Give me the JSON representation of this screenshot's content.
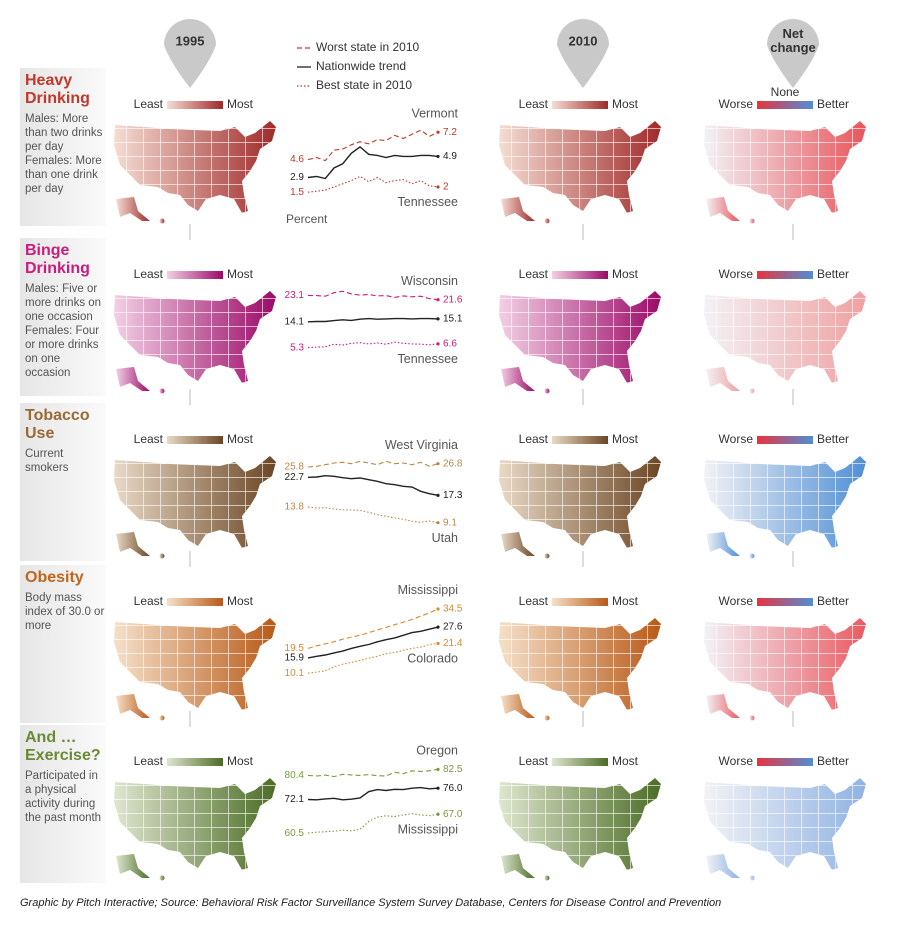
{
  "header": {
    "columns": [
      "1995",
      "2010",
      "Net change"
    ]
  },
  "legend": [
    "Worst state in 2010",
    "Nationwide trend",
    "Best state in 2010"
  ],
  "chart_data": [
    {
      "type": "line",
      "title": "Heavy Drinking",
      "description": "Males: More than two drinks per day Females: More than one drink per day",
      "map_legend": [
        "Least",
        "Most"
      ],
      "net_legend": [
        "Worse",
        "Better"
      ],
      "net_label": "None",
      "unit": "Percent",
      "annotations": [
        "Vermont",
        "Tennessee"
      ],
      "color": "#c0392b",
      "map_colors": [
        "#f5ddd3",
        "#a02a2a"
      ],
      "net_color": "#e8555c",
      "ylim": [
        0,
        9.5
      ],
      "series": [
        {
          "color": "#c0392b",
          "values": [
            4.6,
            4.8,
            4.5,
            5.5,
            5.6,
            6.0,
            6.3,
            6.1,
            6.5,
            6.4,
            6.9,
            6.6,
            7.0,
            7.4,
            6.8,
            7.2
          ]
        },
        {
          "color": "#222222",
          "values": [
            2.9,
            3.0,
            2.8,
            3.8,
            4.2,
            5.2,
            5.8,
            5.1,
            5.0,
            4.8,
            5.0,
            4.9,
            4.9,
            5.0,
            5.0,
            4.9
          ]
        },
        {
          "color": "#c0392b",
          "values": [
            1.5,
            1.6,
            1.7,
            2.0,
            2.3,
            2.6,
            3.0,
            2.5,
            2.9,
            2.4,
            2.6,
            2.7,
            2.3,
            2.6,
            2.1,
            2.0
          ]
        }
      ]
    },
    {
      "type": "line",
      "title": "Binge Drinking",
      "description": "Males: Five or more drinks on one occasion Females: Four or more drinks on one occasion",
      "map_legend": [
        "Least",
        "Most"
      ],
      "net_legend": [
        "Worse",
        "Better"
      ],
      "annotations": [
        "Wisconsin",
        "Tennessee"
      ],
      "color": "#c81d7e",
      "map_colors": [
        "#f3cfe4",
        "#9a0a68"
      ],
      "net_color": "#f0a0a0",
      "ylim": [
        -5,
        29
      ],
      "series": [
        {
          "color": "#c81d7e",
          "values": [
            23.1,
            23.0,
            22.8,
            24.0,
            24.5,
            23.6,
            23.2,
            23.4,
            22.9,
            23.0,
            22.4,
            22.9,
            22.6,
            22.8,
            22.0,
            21.6
          ]
        },
        {
          "color": "#222222",
          "values": [
            14.1,
            14.2,
            14.2,
            14.5,
            14.8,
            14.6,
            15.0,
            15.2,
            15.0,
            15.1,
            15.2,
            15.2,
            15.1,
            15.2,
            15.2,
            15.1
          ]
        },
        {
          "color": "#c81d7e",
          "values": [
            5.3,
            5.5,
            5.6,
            6.5,
            6.2,
            6.8,
            7.0,
            6.6,
            6.9,
            6.5,
            7.2,
            6.8,
            6.6,
            6.5,
            6.3,
            6.6
          ]
        }
      ]
    },
    {
      "type": "line",
      "title": "Tobacco Use",
      "description": "Current smokers",
      "map_legend": [
        "Least",
        "Most"
      ],
      "net_legend": [
        "Worse",
        "Better"
      ],
      "annotations": [
        "West Virginia",
        "Utah"
      ],
      "color": "#9a6a34",
      "map_colors": [
        "#e8d9c6",
        "#6b4624"
      ],
      "net_color": "#4f8fd6",
      "ylim": [
        3,
        33
      ],
      "series": [
        {
          "color": "#b8874a",
          "values": [
            25.8,
            26.0,
            26.5,
            27.0,
            27.2,
            26.8,
            27.5,
            27.0,
            26.5,
            27.5,
            26.8,
            27.0,
            26.5,
            27.2,
            26.0,
            26.8
          ]
        },
        {
          "color": "#222222",
          "values": [
            22.7,
            22.8,
            23.2,
            23.0,
            22.6,
            22.3,
            22.5,
            22.0,
            21.5,
            20.8,
            20.5,
            20.0,
            19.8,
            18.5,
            17.8,
            17.3
          ]
        },
        {
          "color": "#b8874a",
          "values": [
            13.8,
            13.5,
            13.6,
            13.2,
            13.0,
            12.9,
            12.8,
            12.2,
            11.5,
            11.0,
            10.5,
            10.1,
            9.5,
            9.2,
            9.6,
            9.1
          ]
        }
      ]
    },
    {
      "type": "line",
      "title": "Obesity",
      "description": "Body mass index of 30.0 or more",
      "map_legend": [
        "Least",
        "Most"
      ],
      "net_legend": [
        "Worse",
        "Better"
      ],
      "annotations": [
        "Mississippi",
        "Colorado"
      ],
      "color": "#c0651e",
      "map_colors": [
        "#f6e0c9",
        "#b85a18"
      ],
      "net_color": "#ea5a62",
      "ylim": [
        -2,
        36
      ],
      "series": [
        {
          "color": "#e0862e",
          "values": [
            19.5,
            20.5,
            21.2,
            22.0,
            23.0,
            23.8,
            24.5,
            25.5,
            26.5,
            27.5,
            28.5,
            29.5,
            30.5,
            31.8,
            33.0,
            34.5
          ]
        },
        {
          "color": "#222222",
          "values": [
            15.9,
            16.5,
            17.0,
            17.8,
            18.5,
            19.5,
            20.3,
            21.0,
            22.0,
            22.8,
            23.5,
            24.5,
            25.5,
            26.0,
            26.8,
            27.6
          ]
        },
        {
          "color": "#e0862e",
          "values": [
            10.1,
            10.5,
            11.0,
            12.5,
            13.5,
            14.2,
            15.0,
            15.8,
            16.5,
            17.5,
            18.0,
            18.8,
            19.5,
            20.0,
            21.0,
            21.4
          ]
        }
      ]
    },
    {
      "type": "line",
      "title": "And … Exercise?",
      "description": "Participated in a physical activity during the past month",
      "map_legend": [
        "Least",
        "Most"
      ],
      "net_legend": [
        "Worse",
        "Better"
      ],
      "annotations": [
        "Oregon",
        "Mississippi"
      ],
      "color": "#6a8a35",
      "map_colors": [
        "#dfe6cf",
        "#4c6c26"
      ],
      "net_color": "#8fb3e3",
      "ylim": [
        49.5,
        84
      ],
      "series": [
        {
          "color": "#7a9a3e",
          "values": [
            80.4,
            80.2,
            80.5,
            80.0,
            80.8,
            80.6,
            80.4,
            80.7,
            80.3,
            80.2,
            81.5,
            81.0,
            82.0,
            81.8,
            82.0,
            82.5
          ]
        },
        {
          "color": "#222222",
          "values": [
            72.1,
            72.0,
            72.3,
            72.5,
            72.0,
            72.2,
            72.6,
            74.8,
            75.5,
            75.2,
            75.6,
            75.5,
            76.0,
            76.2,
            75.8,
            76.0
          ],
          "value_labels": [
            null,
            null,
            null,
            null,
            null,
            null,
            null,
            null,
            null,
            null,
            null,
            null,
            null,
            null,
            null,
            "76.0"
          ]
        },
        {
          "color": "#7a9a3e",
          "values": [
            60.5,
            60.8,
            61.0,
            61.2,
            61.5,
            61.3,
            61.8,
            64.5,
            66.0,
            66.5,
            66.2,
            66.8,
            67.2,
            66.8,
            66.5,
            67.0
          ],
          "value_labels": [
            null,
            null,
            null,
            null,
            null,
            null,
            null,
            null,
            null,
            null,
            null,
            null,
            null,
            null,
            null,
            "67.0"
          ]
        }
      ]
    }
  ],
  "footer": "Graphic by Pitch Interactive; Source: Behavioral Risk Factor Surveillance System Survey Database, Centers for Disease Control and Prevention"
}
